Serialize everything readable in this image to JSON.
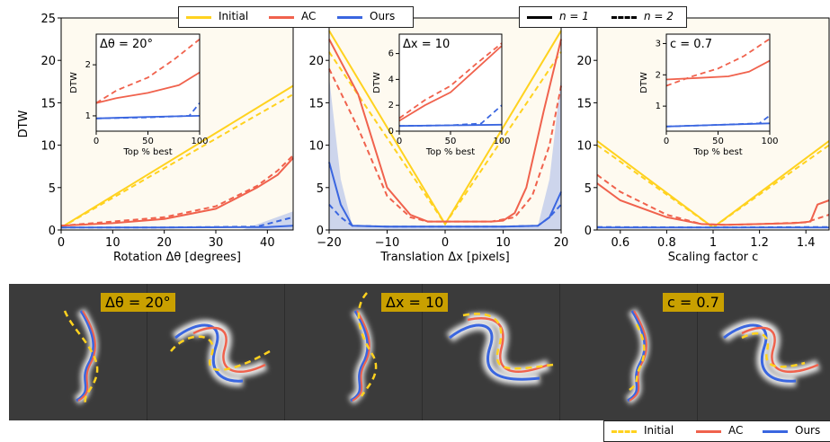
{
  "legend_top_left": {
    "items": [
      {
        "label": "Initial",
        "color": "#ffd21f"
      },
      {
        "label": "AC",
        "color": "#f0624d"
      },
      {
        "label": "Ours",
        "color": "#3a66e0"
      }
    ]
  },
  "legend_top_right": {
    "items": [
      {
        "label": "n = 1",
        "style": "solid"
      },
      {
        "label": "n = 2",
        "style": "dashed"
      }
    ]
  },
  "legend_bottom": {
    "items": [
      {
        "label": "Initial",
        "color": "#ffd21f",
        "style": "dashed"
      },
      {
        "label": "AC",
        "color": "#f0624d",
        "style": "solid"
      },
      {
        "label": "Ours",
        "color": "#3a66e0",
        "style": "solid"
      }
    ]
  },
  "image_tags": [
    "Δθ = 20°",
    "Δx = 10",
    "c = 0.7"
  ],
  "chart_data": [
    {
      "type": "line",
      "xlabel": "Rotation Δθ [degrees]",
      "ylabel": "DTW",
      "xlim": [
        0,
        45
      ],
      "ylim": [
        0,
        25
      ],
      "xticks": [
        0,
        10,
        20,
        30,
        40
      ],
      "yticks": [
        0,
        5,
        10,
        15,
        20,
        25
      ],
      "series": [
        {
          "name": "Initial",
          "n": 1,
          "x": [
            0,
            45
          ],
          "y": [
            0.3,
            17
          ]
        },
        {
          "name": "Initial",
          "n": 2,
          "x": [
            0,
            45
          ],
          "y": [
            0.3,
            16
          ]
        },
        {
          "name": "AC",
          "n": 1,
          "x": [
            0,
            10,
            20,
            30,
            38,
            42,
            45
          ],
          "y": [
            0.5,
            0.8,
            1.3,
            2.5,
            5,
            6.5,
            8.5
          ]
        },
        {
          "name": "AC",
          "n": 2,
          "x": [
            0,
            10,
            20,
            30,
            38,
            42,
            45
          ],
          "y": [
            0.5,
            1.0,
            1.5,
            2.8,
            5.2,
            7,
            8.8
          ]
        },
        {
          "name": "Ours",
          "n": 1,
          "x": [
            0,
            20,
            40,
            45
          ],
          "y": [
            0.3,
            0.3,
            0.35,
            0.5
          ]
        },
        {
          "name": "Ours",
          "n": 2,
          "x": [
            0,
            20,
            38,
            45
          ],
          "y": [
            0.3,
            0.3,
            0.4,
            1.5
          ]
        }
      ],
      "inset": {
        "label": "Δθ = 20°",
        "xlabel": "Top % best",
        "ylabel": "DTW",
        "xlim": [
          0,
          100
        ],
        "ylim": [
          0.7,
          2.6
        ],
        "xticks": [
          0,
          50,
          100
        ],
        "yticks": [
          1,
          2
        ],
        "series": [
          {
            "name": "AC",
            "n": 1,
            "x": [
              0,
              20,
              50,
              80,
              100
            ],
            "y": [
              1.25,
              1.35,
              1.45,
              1.6,
              1.85
            ]
          },
          {
            "name": "AC",
            "n": 2,
            "x": [
              0,
              20,
              50,
              75,
              100
            ],
            "y": [
              1.25,
              1.5,
              1.75,
              2.1,
              2.5
            ]
          },
          {
            "name": "Ours",
            "n": 1,
            "x": [
              0,
              50,
              100
            ],
            "y": [
              0.95,
              0.98,
              1.0
            ]
          },
          {
            "name": "Ours",
            "n": 2,
            "x": [
              0,
              50,
              90,
              100
            ],
            "y": [
              0.95,
              0.97,
              1.0,
              1.25
            ]
          }
        ]
      }
    },
    {
      "type": "line",
      "xlabel": "Translation Δx [pixels]",
      "xlim": [
        -20,
        20
      ],
      "ylim": [
        0,
        25
      ],
      "xticks": [
        -20,
        -10,
        0,
        10,
        20
      ],
      "yticks": [
        0,
        5,
        10,
        15,
        20,
        25
      ],
      "series": [
        {
          "name": "Initial",
          "n": 1,
          "x": [
            -20,
            0,
            20
          ],
          "y": [
            23.5,
            0.7,
            23.5
          ]
        },
        {
          "name": "Initial",
          "n": 2,
          "x": [
            -20,
            0,
            20
          ],
          "y": [
            21,
            0.7,
            21
          ]
        },
        {
          "name": "AC",
          "n": 1,
          "x": [
            -20,
            -15,
            -10,
            -6,
            -3,
            0,
            3,
            8,
            10,
            12,
            14,
            17,
            20
          ],
          "y": [
            22.5,
            16,
            5,
            1.8,
            1,
            1,
            1,
            1,
            1.1,
            2,
            5,
            14,
            22.5
          ]
        },
        {
          "name": "AC",
          "n": 2,
          "x": [
            -20,
            -15,
            -10,
            -6,
            -3,
            0,
            3,
            8,
            12,
            15,
            18,
            20
          ],
          "y": [
            19,
            12,
            4,
            1.5,
            1,
            1,
            1,
            1,
            1.5,
            4,
            10,
            17
          ]
        },
        {
          "name": "Ours",
          "n": 1,
          "x": [
            -20,
            -18,
            -16,
            -10,
            0,
            10,
            16,
            18,
            20
          ],
          "y": [
            8,
            3,
            0.5,
            0.4,
            0.4,
            0.4,
            0.5,
            1.5,
            4.5
          ]
        },
        {
          "name": "Ours",
          "n": 2,
          "x": [
            -20,
            -18,
            -16,
            -10,
            0,
            10,
            16,
            18,
            20
          ],
          "y": [
            3,
            1.5,
            0.5,
            0.4,
            0.4,
            0.4,
            0.5,
            1.5,
            3
          ]
        }
      ],
      "inset": {
        "label": "Δx = 10",
        "xlabel": "Top % best",
        "ylabel": "DTW",
        "xlim": [
          0,
          100
        ],
        "ylim": [
          0,
          7.5
        ],
        "xticks": [
          0,
          50,
          100
        ],
        "yticks": [
          0,
          2,
          4,
          6
        ],
        "series": [
          {
            "name": "AC",
            "n": 1,
            "x": [
              0,
              25,
              50,
              75,
              100
            ],
            "y": [
              0.8,
              2.0,
              3.0,
              4.8,
              6.6
            ]
          },
          {
            "name": "AC",
            "n": 2,
            "x": [
              0,
              25,
              50,
              75,
              100
            ],
            "y": [
              1.0,
              2.4,
              3.5,
              5.2,
              6.8
            ]
          },
          {
            "name": "Ours",
            "n": 1,
            "x": [
              0,
              50,
              100
            ],
            "y": [
              0.4,
              0.45,
              0.5
            ]
          },
          {
            "name": "Ours",
            "n": 2,
            "x": [
              0,
              50,
              80,
              100
            ],
            "y": [
              0.4,
              0.45,
              0.6,
              2.0
            ]
          }
        ]
      }
    },
    {
      "type": "line",
      "xlabel": "Scaling factor c",
      "xlim": [
        0.5,
        1.5
      ],
      "ylim": [
        0,
        25
      ],
      "xticks": [
        0.6,
        0.8,
        1.0,
        1.2,
        1.4
      ],
      "yticks": [
        0,
        5,
        10,
        15,
        20,
        25
      ],
      "series": [
        {
          "name": "Initial",
          "n": 1,
          "x": [
            0.5,
            1.0,
            1.5
          ],
          "y": [
            10.5,
            0.3,
            10.5
          ]
        },
        {
          "name": "Initial",
          "n": 2,
          "x": [
            0.5,
            1.0,
            1.5
          ],
          "y": [
            10,
            0.3,
            10
          ]
        },
        {
          "name": "AC",
          "n": 1,
          "x": [
            0.5,
            0.6,
            0.8,
            0.95,
            1.05,
            1.2,
            1.35,
            1.42,
            1.45,
            1.5
          ],
          "y": [
            5.5,
            3.5,
            1.5,
            0.7,
            0.6,
            0.7,
            0.8,
            1.0,
            3.0,
            3.5
          ]
        },
        {
          "name": "AC",
          "n": 2,
          "x": [
            0.5,
            0.6,
            0.8,
            0.95,
            1.05,
            1.2,
            1.4,
            1.5
          ],
          "y": [
            6.5,
            4.5,
            1.8,
            0.7,
            0.6,
            0.7,
            0.9,
            1.8
          ]
        },
        {
          "name": "Ours",
          "n": 1,
          "x": [
            0.5,
            1.0,
            1.5
          ],
          "y": [
            0.3,
            0.3,
            0.3
          ]
        },
        {
          "name": "Ours",
          "n": 2,
          "x": [
            0.5,
            1.0,
            1.5
          ],
          "y": [
            0.35,
            0.3,
            0.35
          ]
        }
      ],
      "inset": {
        "label": "c = 0.7",
        "xlabel": "Top % best",
        "ylabel": "DTW",
        "xlim": [
          0,
          100
        ],
        "ylim": [
          0.2,
          3.3
        ],
        "xticks": [
          0,
          50,
          100
        ],
        "yticks": [
          1,
          2,
          3
        ],
        "series": [
          {
            "name": "AC",
            "n": 1,
            "x": [
              0,
              30,
              60,
              80,
              100
            ],
            "y": [
              1.85,
              1.9,
              1.95,
              2.1,
              2.45
            ]
          },
          {
            "name": "AC",
            "n": 2,
            "x": [
              0,
              25,
              50,
              75,
              100
            ],
            "y": [
              1.65,
              1.95,
              2.2,
              2.6,
              3.15
            ]
          },
          {
            "name": "Ours",
            "n": 1,
            "x": [
              0,
              50,
              100
            ],
            "y": [
              0.35,
              0.4,
              0.45
            ]
          },
          {
            "name": "Ours",
            "n": 2,
            "x": [
              0,
              50,
              90,
              100
            ],
            "y": [
              0.35,
              0.4,
              0.45,
              0.7
            ]
          }
        ]
      }
    }
  ]
}
